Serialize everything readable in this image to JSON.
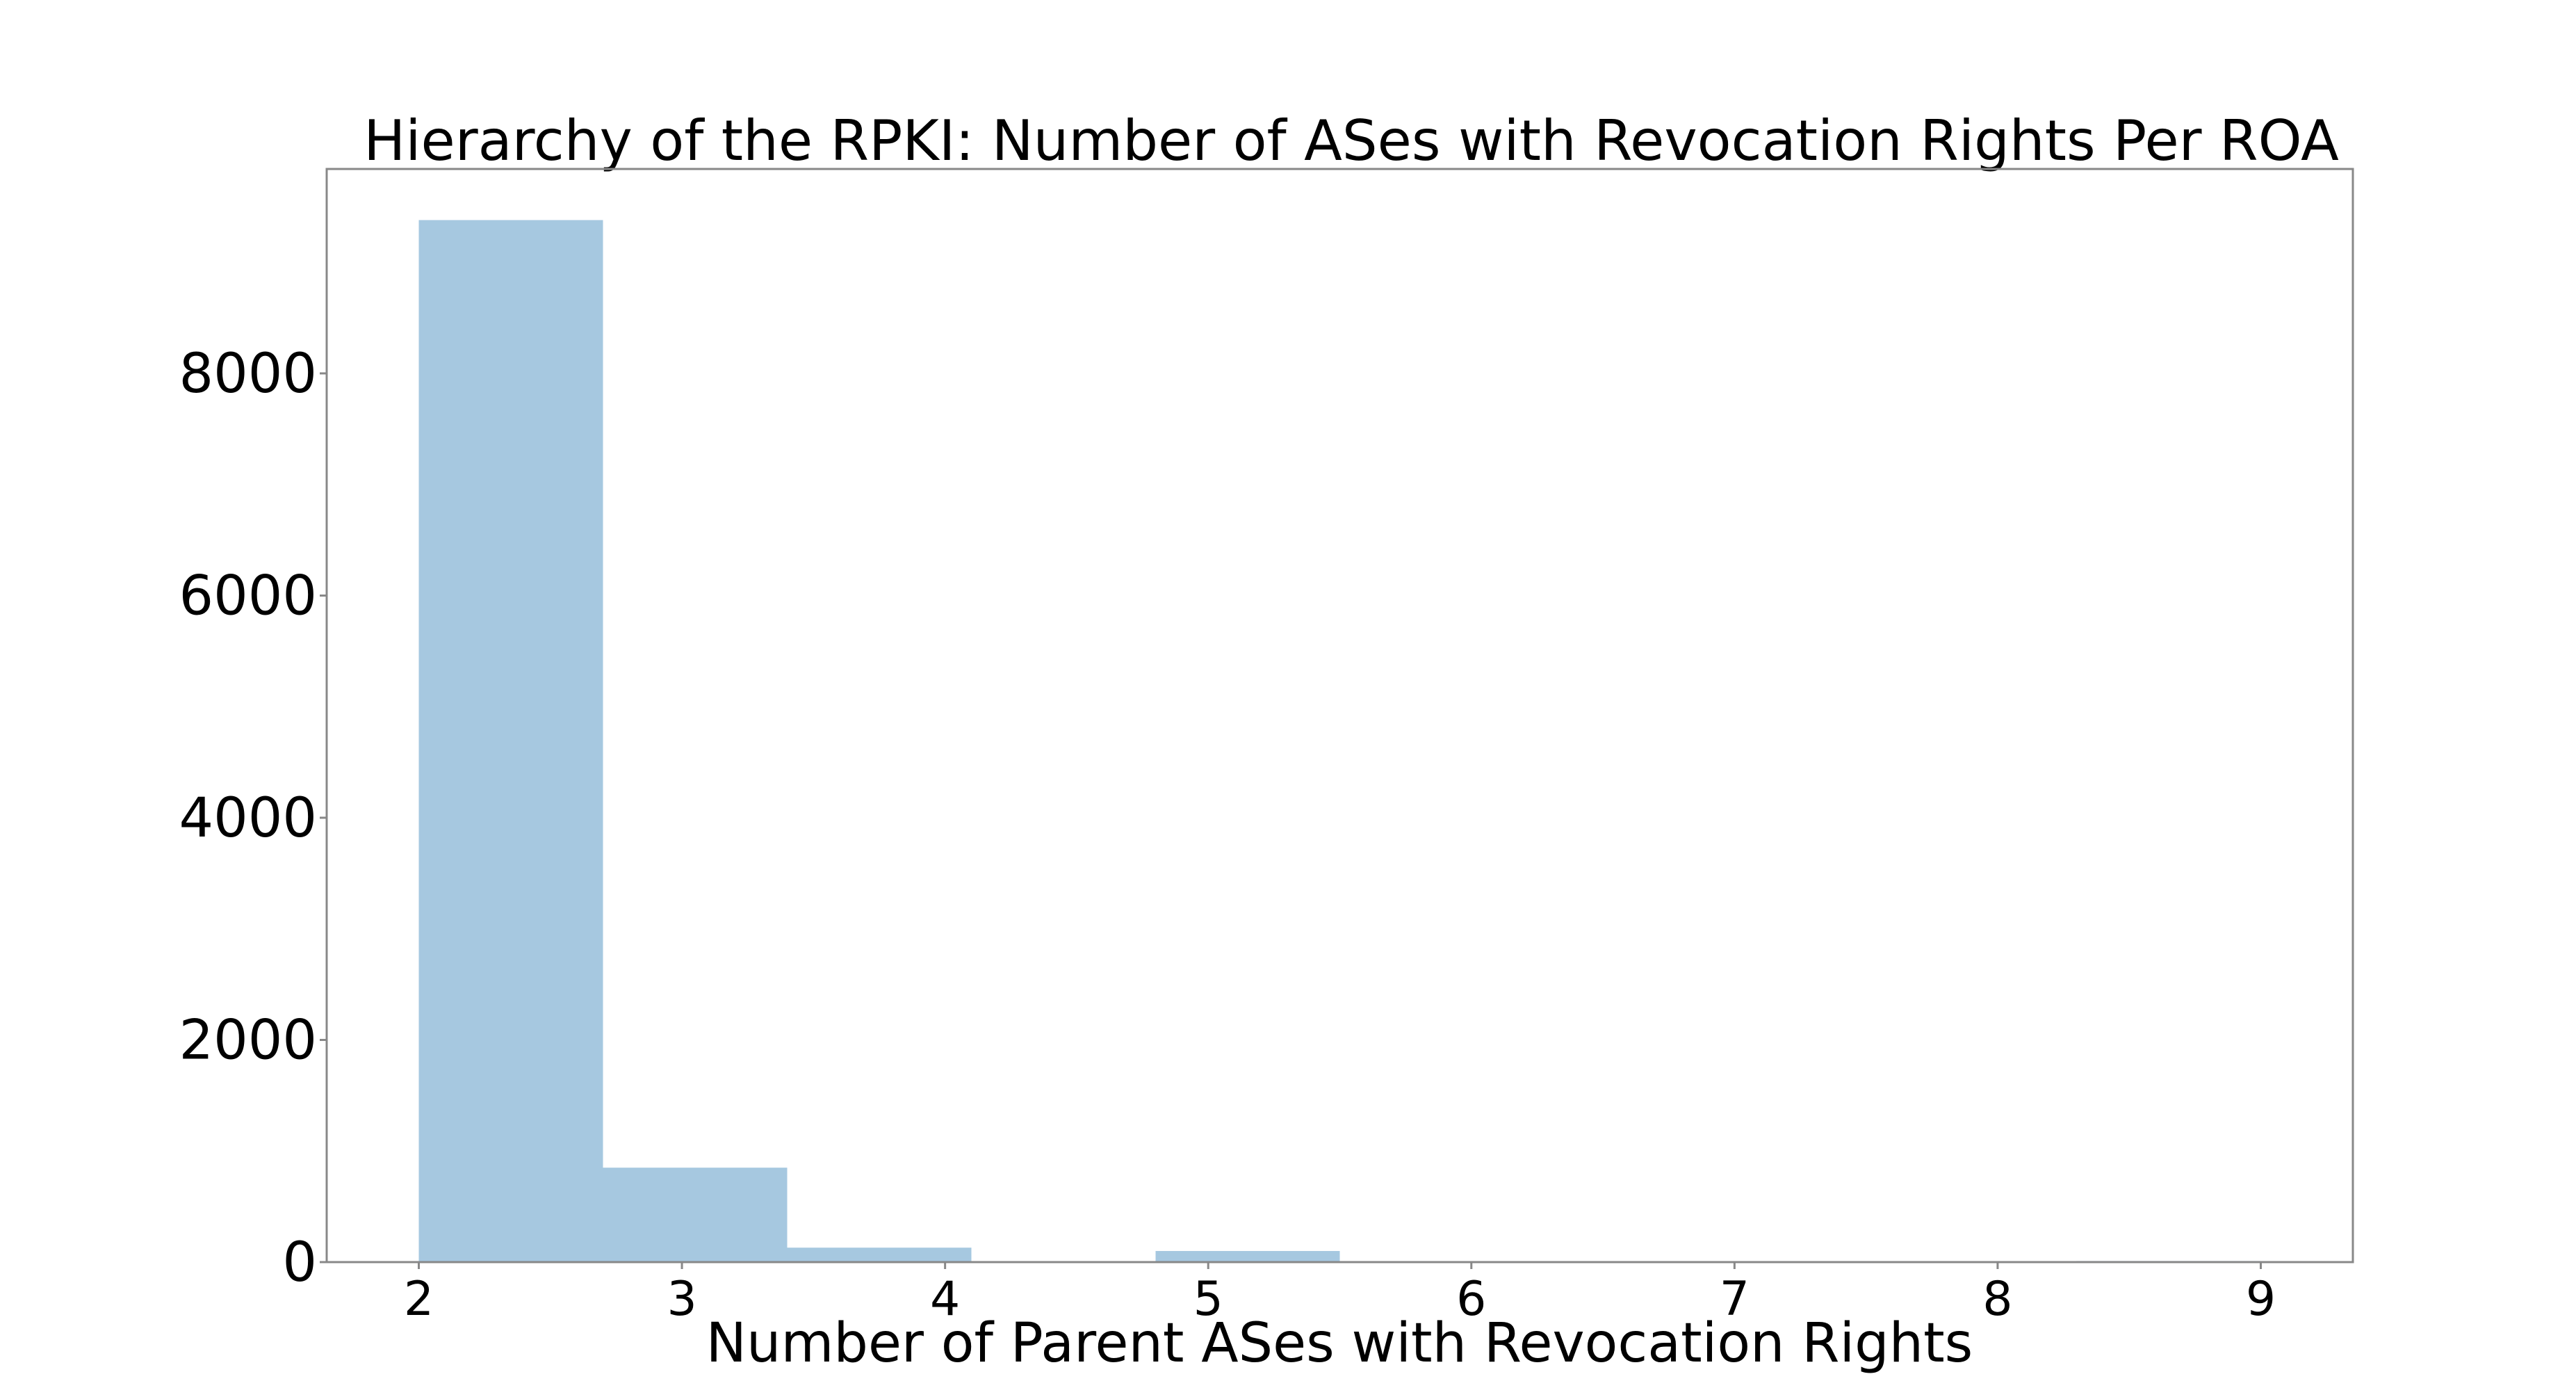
{
  "chart_data": {
    "type": "bar",
    "title": "Hierarchy of the RPKI: Number of ASes with Revocation Rights Per ROA",
    "xlabel": "Number of Parent ASes with Revocation Rights",
    "ylabel": "",
    "xlim": [
      1.65,
      9.35
    ],
    "ylim": [
      0,
      9840
    ],
    "x_ticks": [
      2,
      3,
      4,
      5,
      6,
      7,
      8,
      9
    ],
    "y_ticks": [
      0,
      2000,
      4000,
      6000,
      8000
    ],
    "bins": [
      {
        "x0": 2.0,
        "x1": 2.7,
        "value": 9380
      },
      {
        "x0": 2.7,
        "x1": 3.4,
        "value": 850
      },
      {
        "x0": 3.4,
        "x1": 4.1,
        "value": 130
      },
      {
        "x0": 4.1,
        "x1": 4.8,
        "value": 0
      },
      {
        "x0": 4.8,
        "x1": 5.5,
        "value": 100
      },
      {
        "x0": 5.5,
        "x1": 6.2,
        "value": 5
      },
      {
        "x0": 6.2,
        "x1": 6.9,
        "value": 0
      },
      {
        "x0": 6.9,
        "x1": 7.6,
        "value": 5
      },
      {
        "x0": 7.6,
        "x1": 8.3,
        "value": 5
      },
      {
        "x0": 8.3,
        "x1": 9.0,
        "value": 10
      }
    ],
    "bar_color": "#a6c8e0",
    "grid": false,
    "legend": "none"
  }
}
